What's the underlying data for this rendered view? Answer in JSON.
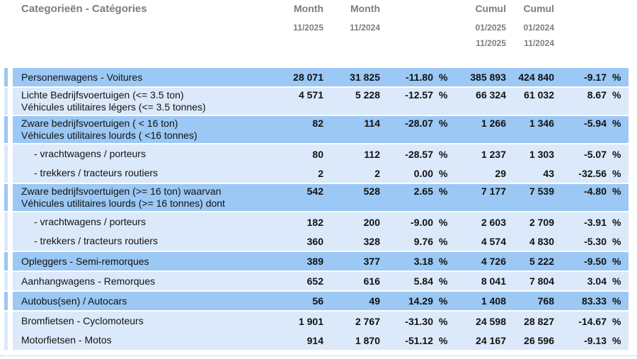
{
  "title": "Categorieën - Catégories",
  "percent_sign": "%",
  "colors": {
    "row_medium": "#9bc8f4",
    "row_light": "#dbe9fa",
    "header_text": "#7d7d7d",
    "body_text": "#121212"
  },
  "header": {
    "cols": [
      {
        "label": "Month",
        "dates": [
          "11/2025"
        ]
      },
      {
        "label": "Month",
        "dates": [
          "11/2024"
        ]
      },
      {
        "label": "Cumul",
        "dates": [
          "01/2025",
          "11/2025"
        ]
      },
      {
        "label": "Cumul",
        "dates": [
          "01/2024",
          "11/2024"
        ]
      }
    ]
  },
  "blocks": [
    {
      "shade": "medium",
      "rows": [
        {
          "label_lines": [
            "Personenwagens - Voitures"
          ],
          "indent": false,
          "values": [
            "28 071",
            "31 825",
            "-11.80",
            "385 893",
            "424 840",
            "-9.17"
          ]
        }
      ]
    },
    {
      "shade": "light",
      "rows": [
        {
          "label_lines": [
            "Lichte Bedrijfsvoertuigen (<= 3.5 ton)",
            "Véhicules utilitaires légers (<= 3.5 tonnes)"
          ],
          "indent": false,
          "values": [
            "4 571",
            "5 228",
            "-12.57",
            "66 324",
            "61 032",
            "8.67"
          ]
        }
      ]
    },
    {
      "shade": "medium",
      "rows": [
        {
          "label_lines": [
            "Zware bedrijfsvoertuigen ( < 16 ton)",
            "Véhicules utilitaires lourds ( <16 tonnes)"
          ],
          "indent": false,
          "values": [
            "82",
            "114",
            "-28.07",
            "1 266",
            "1 346",
            "-5.94"
          ]
        }
      ]
    },
    {
      "shade": "light",
      "rows": [
        {
          "label_lines": [
            "- vrachtwagens / porteurs"
          ],
          "indent": true,
          "values": [
            "80",
            "112",
            "-28.57",
            "1 237",
            "1 303",
            "-5.07"
          ]
        },
        {
          "label_lines": [
            "- trekkers / tracteurs routiers"
          ],
          "indent": true,
          "values": [
            "2",
            "2",
            "0.00",
            "29",
            "43",
            "-32.56"
          ]
        }
      ]
    },
    {
      "shade": "medium",
      "rows": [
        {
          "label_lines": [
            "Zware bedrijfsvoertuigen (>= 16 ton) waarvan",
            "Véhicules utilitaires lourds (>= 16 tonnes) dont"
          ],
          "indent": false,
          "values": [
            "542",
            "528",
            "2.65",
            "7 177",
            "7 539",
            "-4.80"
          ]
        }
      ]
    },
    {
      "shade": "light",
      "rows": [
        {
          "label_lines": [
            "- vrachtwagens / porteurs"
          ],
          "indent": true,
          "values": [
            "182",
            "200",
            "-9.00",
            "2 603",
            "2 709",
            "-3.91"
          ]
        },
        {
          "label_lines": [
            "- trekkers / tracteurs routiers"
          ],
          "indent": true,
          "values": [
            "360",
            "328",
            "9.76",
            "4 574",
            "4 830",
            "-5.30"
          ]
        }
      ]
    },
    {
      "shade": "medium",
      "rows": [
        {
          "label_lines": [
            "Opleggers - Semi-remorques"
          ],
          "indent": false,
          "values": [
            "389",
            "377",
            "3.18",
            "4 726",
            "5 222",
            "-9.50"
          ]
        }
      ]
    },
    {
      "shade": "light",
      "rows": [
        {
          "label_lines": [
            "Aanhangwagens - Remorques"
          ],
          "indent": false,
          "values": [
            "652",
            "616",
            "5.84",
            "8 041",
            "7 804",
            "3.04"
          ]
        }
      ]
    },
    {
      "shade": "medium",
      "rows": [
        {
          "label_lines": [
            "Autobus(sen) / Autocars"
          ],
          "indent": false,
          "values": [
            "56",
            "49",
            "14.29",
            "1 408",
            "768",
            "83.33"
          ]
        }
      ]
    },
    {
      "shade": "light",
      "rows": [
        {
          "label_lines": [
            "Bromfietsen - Cyclomoteurs"
          ],
          "indent": false,
          "values": [
            "1 901",
            "2 767",
            "-31.30",
            "24 598",
            "28 827",
            "-14.67"
          ]
        },
        {
          "label_lines": [
            "Motorfietsen - Motos"
          ],
          "indent": false,
          "values": [
            "914",
            "1 870",
            "-51.12",
            "24 167",
            "26 596",
            "-9.13"
          ]
        }
      ]
    }
  ]
}
